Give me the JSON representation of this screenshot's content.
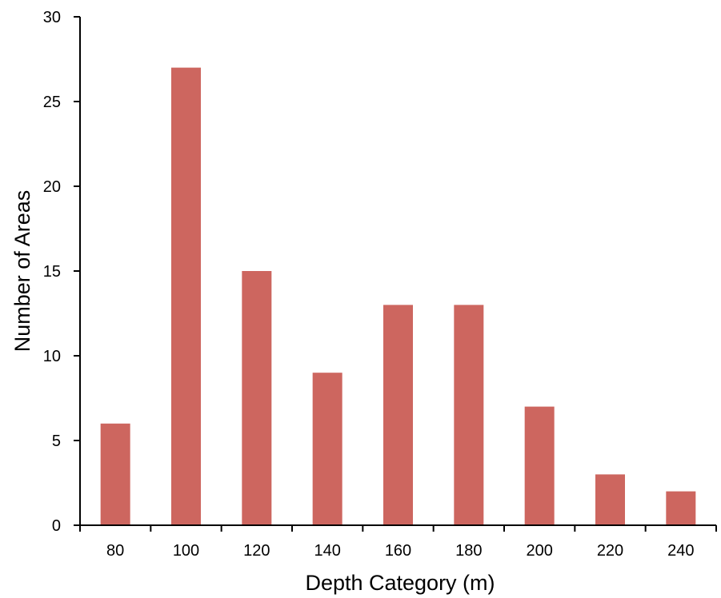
{
  "chart_data": {
    "type": "bar",
    "title": "",
    "xlabel": "Depth Category (m)",
    "ylabel": "Number of Areas",
    "categories": [
      "80",
      "100",
      "120",
      "140",
      "160",
      "180",
      "200",
      "220",
      "240"
    ],
    "values": [
      6,
      27,
      15,
      9,
      13,
      13,
      7,
      3,
      2
    ],
    "ylim": [
      0,
      30
    ],
    "yticks": [
      0,
      5,
      10,
      15,
      20,
      25,
      30
    ],
    "grid": false,
    "legend": "none",
    "colors": {
      "bar": "#CD665F",
      "axis": "#000000",
      "text": "#000000"
    }
  }
}
